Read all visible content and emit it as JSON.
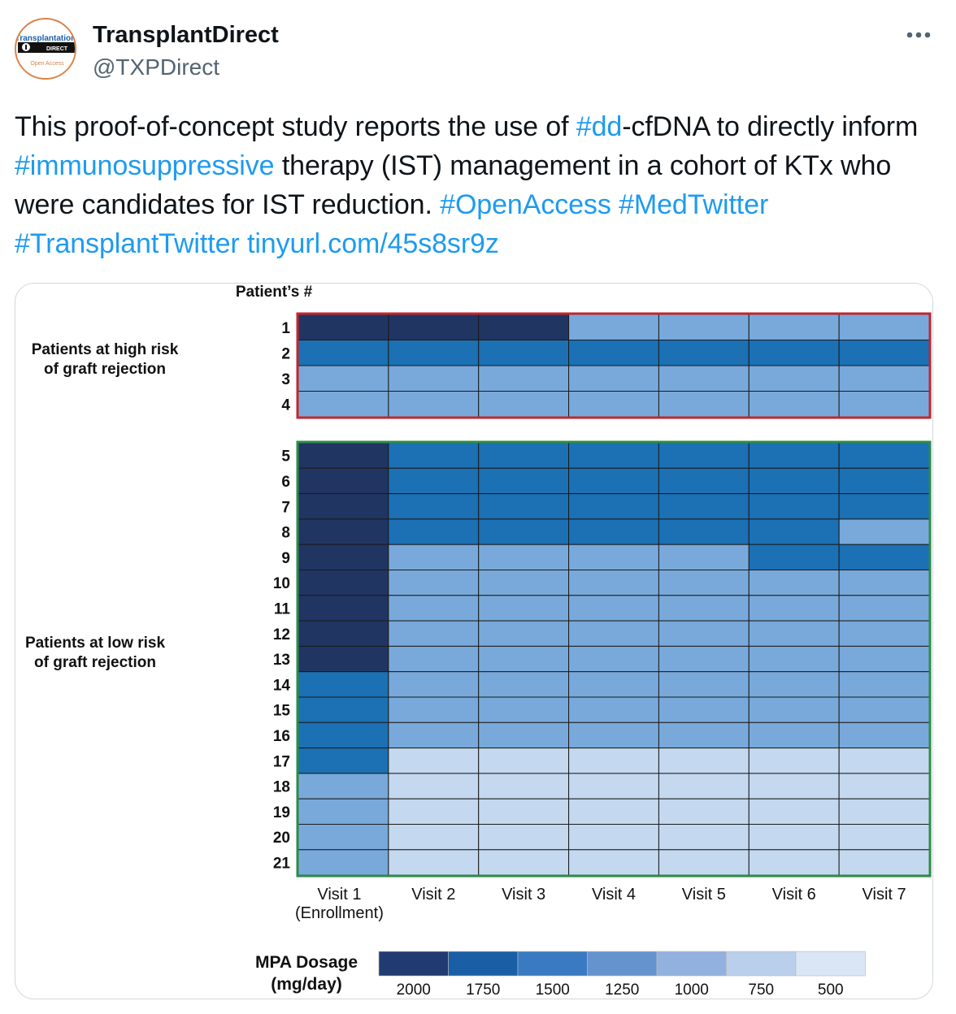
{
  "tweet": {
    "display_name": "TransplantDirect",
    "handle": "@TXPDirect",
    "avatar": {
      "logo_line1": "Transplantation",
      "logo_line2": "DIRECT",
      "logo_line3": "Open Access"
    },
    "more_icon": "more-horizontal-icon",
    "text_segments": [
      {
        "text": "This proof-of-concept study reports the use of ",
        "link": false
      },
      {
        "text": "#dd",
        "link": true
      },
      {
        "text": "-cfDNA to directly inform ",
        "link": false
      },
      {
        "text": "#immunosuppressive",
        "link": true
      },
      {
        "text": " therapy (IST) management in a cohort of KTx who were candidates for IST reduction. ",
        "link": false
      },
      {
        "text": "#OpenAccess",
        "link": true
      },
      {
        "text": " ",
        "link": false
      },
      {
        "text": "#MedTwitter",
        "link": true
      },
      {
        "text": " ",
        "link": false
      },
      {
        "text": "#TransplantTwitter",
        "link": true
      },
      {
        "text": " ",
        "link": false
      },
      {
        "text": "tinyurl.com/45s8sr9z",
        "link": true
      }
    ],
    "link_color": "#1d9bf0"
  },
  "chart_data": {
    "type": "heatmap",
    "title": "Patient’s #",
    "x_categories": [
      "Visit 1\n(Enrollment)",
      "Visit 2",
      "Visit 3",
      "Visit 4",
      "Visit 5",
      "Visit 6",
      "Visit 7"
    ],
    "y_categories": [
      "1",
      "2",
      "3",
      "4",
      "5",
      "6",
      "7",
      "8",
      "9",
      "10",
      "11",
      "12",
      "13",
      "14",
      "15",
      "16",
      "17",
      "18",
      "19",
      "20",
      "21"
    ],
    "groups": [
      {
        "label": "Patients at high risk\nof graft rejection",
        "patients": [
          1,
          2,
          3,
          4
        ],
        "border_color": "#c0272d"
      },
      {
        "label": "Patients at low risk\nof graft rejection",
        "patients": [
          5,
          6,
          7,
          8,
          9,
          10,
          11,
          12,
          13,
          14,
          15,
          16,
          17,
          18,
          19,
          20,
          21
        ],
        "border_color": "#2e8b47"
      }
    ],
    "values": [
      [
        2000,
        2000,
        2000,
        1000,
        1000,
        1000,
        1000
      ],
      [
        1500,
        1500,
        1500,
        1500,
        1500,
        1500,
        1500
      ],
      [
        1000,
        1000,
        1000,
        1000,
        1000,
        1000,
        1000
      ],
      [
        1000,
        1000,
        1000,
        1000,
        1000,
        1000,
        1000
      ],
      [
        2000,
        1500,
        1500,
        1500,
        1500,
        1500,
        1500
      ],
      [
        2000,
        1500,
        1500,
        1500,
        1500,
        1500,
        1500
      ],
      [
        2000,
        1500,
        1500,
        1500,
        1500,
        1500,
        1500
      ],
      [
        2000,
        1500,
        1500,
        1500,
        1500,
        1500,
        1000
      ],
      [
        2000,
        1000,
        1000,
        1000,
        1000,
        1500,
        1500
      ],
      [
        2000,
        1000,
        1000,
        1000,
        1000,
        1000,
        1000
      ],
      [
        2000,
        1000,
        1000,
        1000,
        1000,
        1000,
        1000
      ],
      [
        2000,
        1000,
        1000,
        1000,
        1000,
        1000,
        1000
      ],
      [
        2000,
        1000,
        1000,
        1000,
        1000,
        1000,
        1000
      ],
      [
        1500,
        1000,
        1000,
        1000,
        1000,
        1000,
        1000
      ],
      [
        1500,
        1000,
        1000,
        1000,
        1000,
        1000,
        1000
      ],
      [
        1500,
        1000,
        1000,
        1000,
        1000,
        1000,
        1000
      ],
      [
        1500,
        500,
        500,
        500,
        500,
        500,
        500
      ],
      [
        1000,
        500,
        500,
        500,
        500,
        500,
        500
      ],
      [
        1000,
        500,
        500,
        500,
        500,
        500,
        500
      ],
      [
        1000,
        500,
        500,
        500,
        500,
        500,
        500
      ],
      [
        1000,
        500,
        500,
        500,
        500,
        500,
        500
      ]
    ],
    "color_map": {
      "2000": "#213563",
      "1500": "#1c70b4",
      "1000": "#79a9da",
      "500": "#c4d8ef"
    },
    "legend": {
      "title": "MPA Dosage\n(mg/day)",
      "colors": [
        "#213a72",
        "#1a5fa6",
        "#3a7ac2",
        "#6593ce",
        "#93b1de",
        "#bacfec",
        "#dae5f6"
      ],
      "labels": [
        "2000",
        "1750",
        "1500",
        "1250",
        "1000",
        "750",
        "500"
      ],
      "placement": "bottom"
    }
  }
}
